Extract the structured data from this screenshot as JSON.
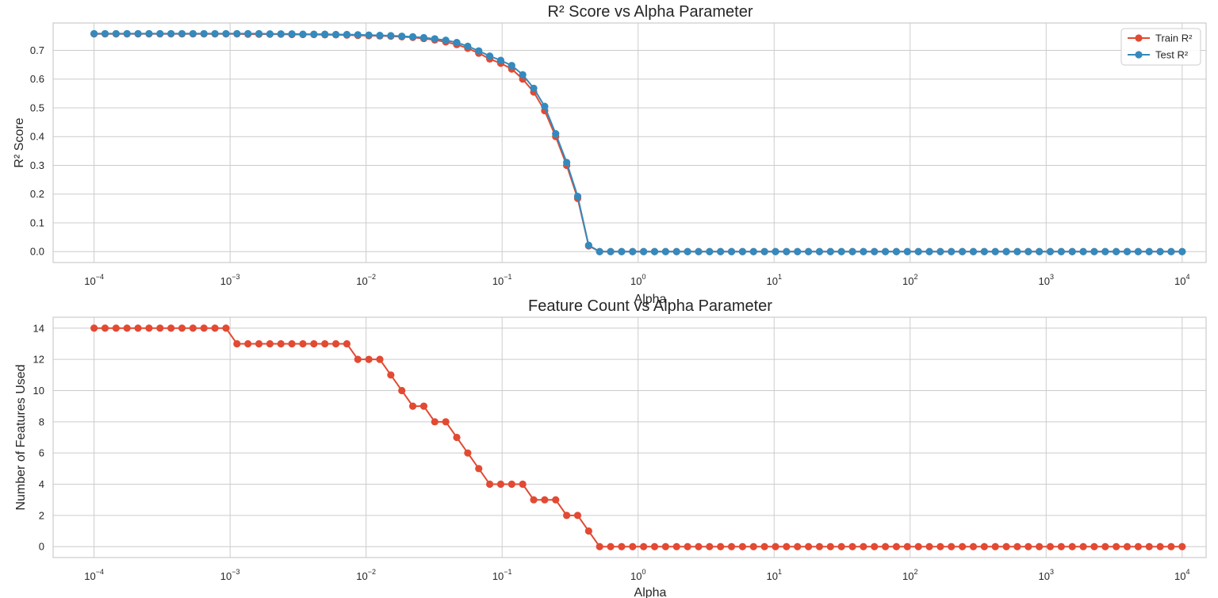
{
  "colors": {
    "train": "#e24a33",
    "test": "#348abd",
    "grid": "#cccccc",
    "frame": "#cccccc",
    "text": "#262626"
  },
  "chart_data": [
    {
      "type": "line",
      "title": "R² Score vs Alpha Parameter",
      "xlabel": "Alpha",
      "ylabel": "R² Score",
      "xscale": "log",
      "xlim": [
        5e-05,
        15000
      ],
      "ylim": [
        -0.038,
        0.795
      ],
      "xticks": [
        0.0001,
        0.001,
        0.01,
        0.1,
        1,
        10,
        100,
        1000,
        10000
      ],
      "xtick_labels": [
        {
          "base": "10",
          "exp": "−4"
        },
        {
          "base": "10",
          "exp": "−3"
        },
        {
          "base": "10",
          "exp": "−2"
        },
        {
          "base": "10",
          "exp": "−1"
        },
        {
          "base": "10",
          "exp": "0"
        },
        {
          "base": "10",
          "exp": "1"
        },
        {
          "base": "10",
          "exp": "2"
        },
        {
          "base": "10",
          "exp": "3"
        },
        {
          "base": "10",
          "exp": "4"
        }
      ],
      "yticks": [
        0.0,
        0.1,
        0.2,
        0.3,
        0.4,
        0.5,
        0.6,
        0.7
      ],
      "ytick_labels": [
        "0.0",
        "0.1",
        "0.2",
        "0.3",
        "0.4",
        "0.5",
        "0.6",
        "0.7"
      ],
      "grid": true,
      "legend": "top-right",
      "alpha_range": {
        "start": 0.0001,
        "stop": 10000,
        "points": 100,
        "spacing": "log"
      },
      "series": [
        {
          "name": "Train R²",
          "color": "#e24a33",
          "values": [
            0.757,
            0.757,
            0.757,
            0.757,
            0.757,
            0.757,
            0.757,
            0.757,
            0.757,
            0.757,
            0.757,
            0.757,
            0.757,
            0.757,
            0.756,
            0.756,
            0.756,
            0.756,
            0.755,
            0.755,
            0.755,
            0.754,
            0.754,
            0.753,
            0.752,
            0.751,
            0.75,
            0.749,
            0.747,
            0.745,
            0.741,
            0.736,
            0.729,
            0.72,
            0.707,
            0.69,
            0.67,
            0.655,
            0.635,
            0.6,
            0.555,
            0.49,
            0.4,
            0.3,
            0.185,
            0.02,
            0,
            0,
            0,
            0,
            0,
            0,
            0,
            0,
            0,
            0,
            0,
            0,
            0,
            0,
            0,
            0,
            0,
            0,
            0,
            0,
            0,
            0,
            0,
            0,
            0,
            0,
            0,
            0,
            0,
            0,
            0,
            0,
            0,
            0,
            0,
            0,
            0,
            0,
            0,
            0,
            0,
            0,
            0,
            0,
            0,
            0,
            0,
            0,
            0,
            0,
            0,
            0,
            0,
            0
          ]
        },
        {
          "name": "Test R²",
          "color": "#348abd",
          "values": [
            0.758,
            0.758,
            0.758,
            0.758,
            0.758,
            0.758,
            0.758,
            0.758,
            0.758,
            0.758,
            0.758,
            0.758,
            0.758,
            0.758,
            0.758,
            0.758,
            0.757,
            0.757,
            0.757,
            0.756,
            0.756,
            0.756,
            0.755,
            0.755,
            0.754,
            0.753,
            0.752,
            0.751,
            0.749,
            0.747,
            0.744,
            0.74,
            0.735,
            0.727,
            0.714,
            0.698,
            0.68,
            0.665,
            0.647,
            0.615,
            0.568,
            0.505,
            0.41,
            0.31,
            0.192,
            0.022,
            0,
            0,
            0,
            0,
            0,
            0,
            0,
            0,
            0,
            0,
            0,
            0,
            0,
            0,
            0,
            0,
            0,
            0,
            0,
            0,
            0,
            0,
            0,
            0,
            0,
            0,
            0,
            0,
            0,
            0,
            0,
            0,
            0,
            0,
            0,
            0,
            0,
            0,
            0,
            0,
            0,
            0,
            0,
            0,
            0,
            0,
            0,
            0,
            0,
            0,
            0,
            0,
            0,
            0
          ]
        }
      ]
    },
    {
      "type": "line",
      "title": "Feature Count vs Alpha Parameter",
      "xlabel": "Alpha",
      "ylabel": "Number of Features Used",
      "xscale": "log",
      "xlim": [
        5e-05,
        15000
      ],
      "ylim": [
        -0.7,
        14.7
      ],
      "xticks": [
        0.0001,
        0.001,
        0.01,
        0.1,
        1,
        10,
        100,
        1000,
        10000
      ],
      "xtick_labels": [
        {
          "base": "10",
          "exp": "−4"
        },
        {
          "base": "10",
          "exp": "−3"
        },
        {
          "base": "10",
          "exp": "−2"
        },
        {
          "base": "10",
          "exp": "−1"
        },
        {
          "base": "10",
          "exp": "0"
        },
        {
          "base": "10",
          "exp": "1"
        },
        {
          "base": "10",
          "exp": "2"
        },
        {
          "base": "10",
          "exp": "3"
        },
        {
          "base": "10",
          "exp": "4"
        }
      ],
      "yticks": [
        0,
        2,
        4,
        6,
        8,
        10,
        12,
        14
      ],
      "ytick_labels": [
        "0",
        "2",
        "4",
        "6",
        "8",
        "10",
        "12",
        "14"
      ],
      "grid": true,
      "alpha_range": {
        "start": 0.0001,
        "stop": 10000,
        "points": 100,
        "spacing": "log"
      },
      "series": [
        {
          "color": "#e24a33",
          "values": [
            14,
            14,
            14,
            14,
            14,
            14,
            14,
            14,
            14,
            14,
            14,
            14,
            14,
            13,
            13,
            13,
            13,
            13,
            13,
            13,
            13,
            13,
            13,
            13,
            12,
            12,
            12,
            11,
            10,
            9,
            9,
            8,
            8,
            7,
            6,
            5,
            4,
            4,
            4,
            4,
            3,
            3,
            3,
            2,
            2,
            1,
            0,
            0,
            0,
            0,
            0,
            0,
            0,
            0,
            0,
            0,
            0,
            0,
            0,
            0,
            0,
            0,
            0,
            0,
            0,
            0,
            0,
            0,
            0,
            0,
            0,
            0,
            0,
            0,
            0,
            0,
            0,
            0,
            0,
            0,
            0,
            0,
            0,
            0,
            0,
            0,
            0,
            0,
            0,
            0,
            0,
            0,
            0,
            0,
            0,
            0,
            0,
            0,
            0,
            0
          ]
        }
      ]
    }
  ]
}
